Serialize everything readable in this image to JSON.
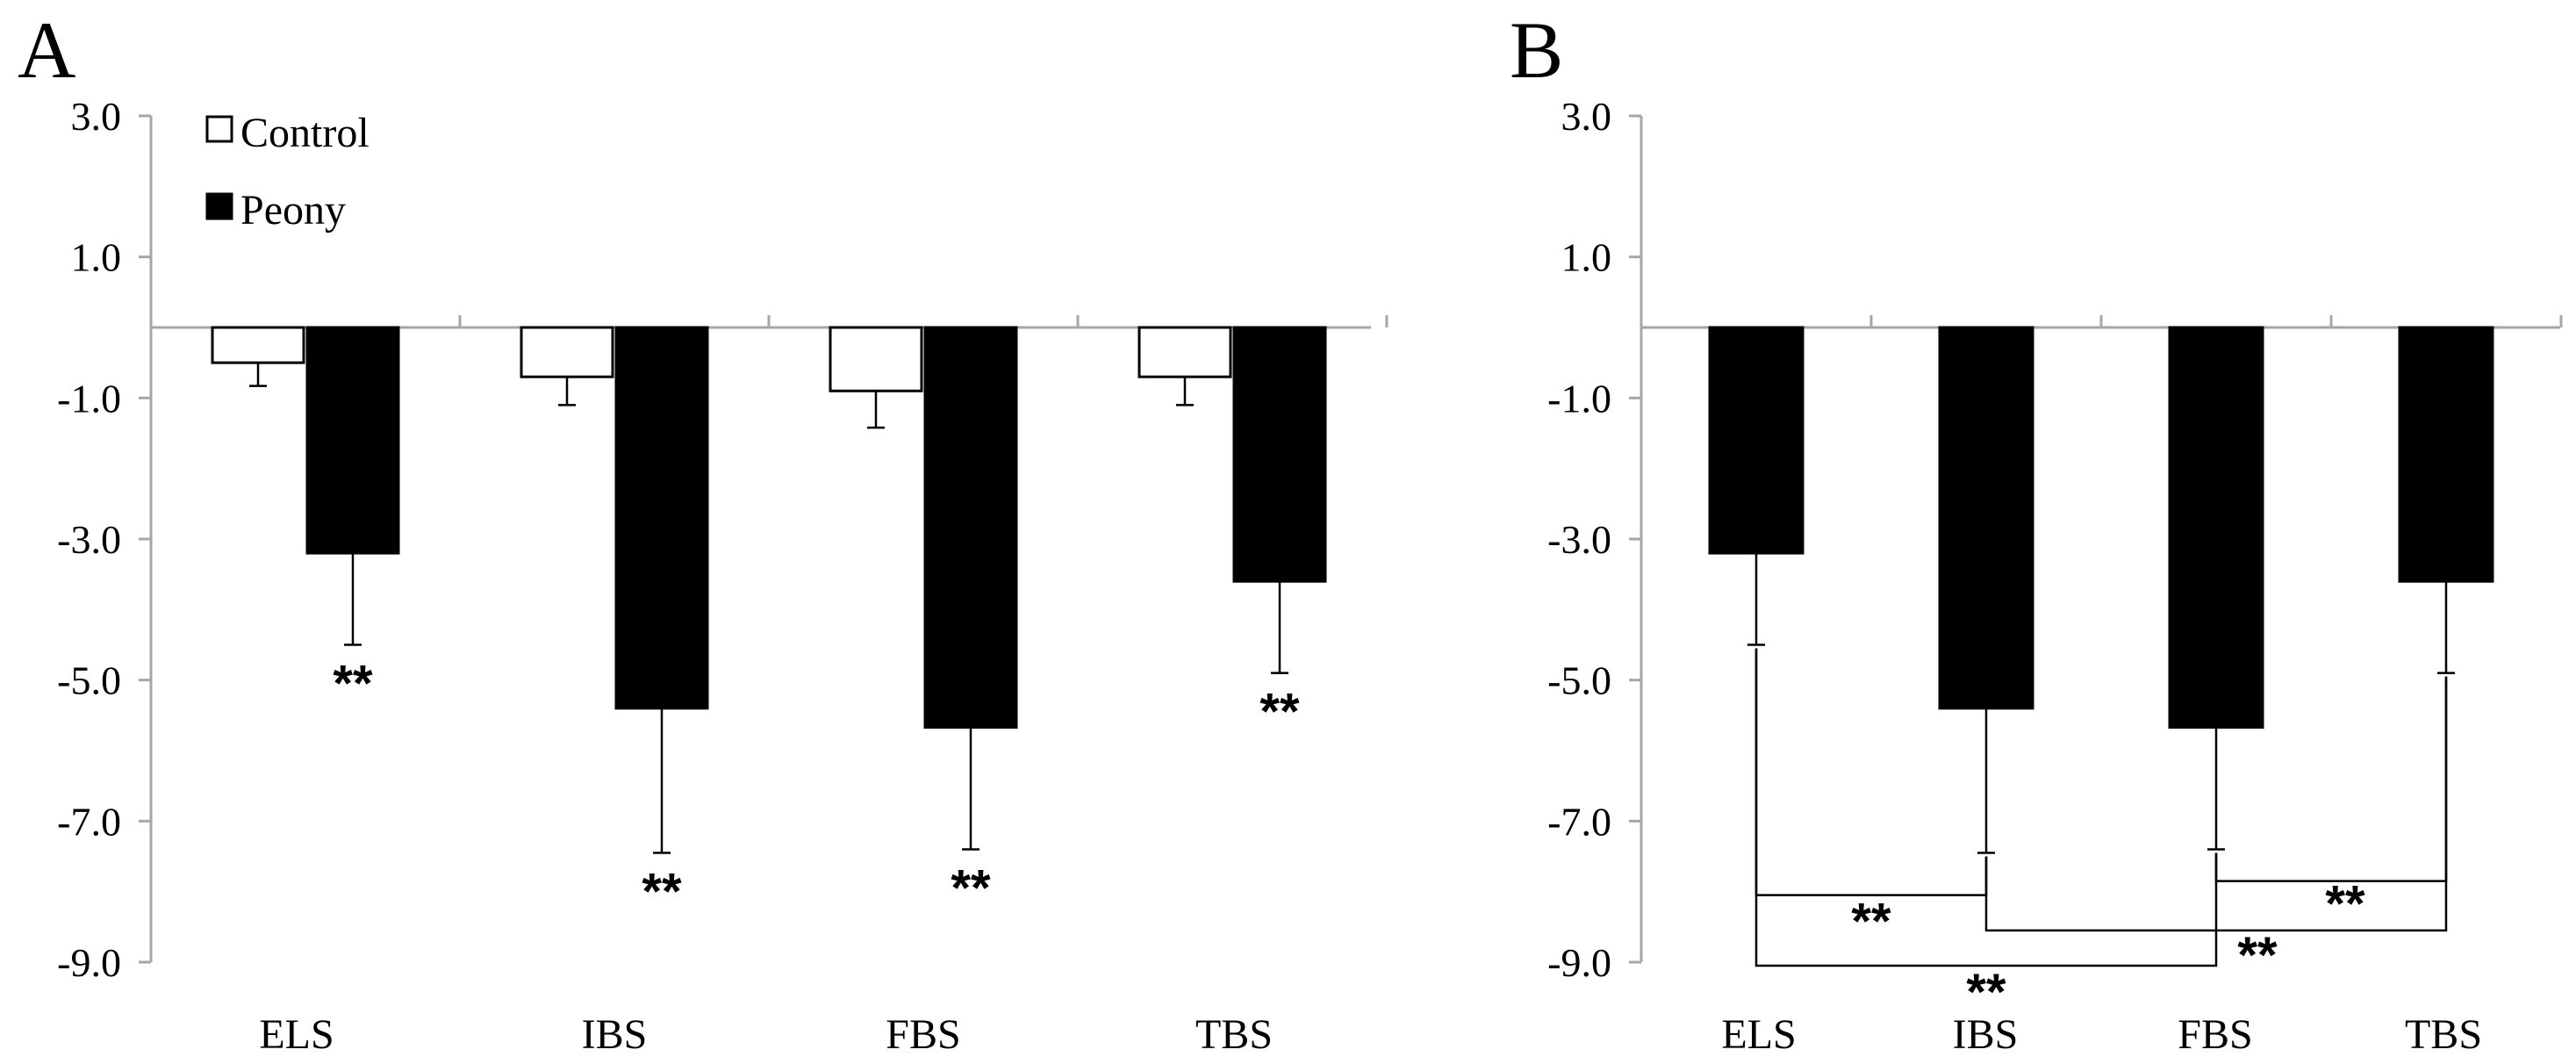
{
  "chart_data": [
    {
      "panel": "A",
      "type": "bar",
      "categories": [
        "ELS",
        "IBS",
        "FBS",
        "TBS"
      ],
      "y_ticks": [
        "3.0",
        "1.0",
        "-1.0",
        "-3.0",
        "-5.0",
        "-7.0",
        "-9.0"
      ],
      "ylim": [
        -9.0,
        3.0
      ],
      "legend": {
        "placement": "top-left",
        "entries": [
          "Control",
          "Peony"
        ]
      },
      "series": [
        {
          "name": "Control",
          "color": "#ffffff",
          "values": [
            -0.5,
            -0.7,
            -0.9,
            -0.7
          ],
          "errors": [
            0.33,
            0.4,
            0.52,
            0.4
          ]
        },
        {
          "name": "Peony",
          "color": "#000000",
          "values": [
            -3.2,
            -5.4,
            -5.67,
            -3.6
          ],
          "errors": [
            1.3,
            2.05,
            1.73,
            1.3
          ]
        }
      ],
      "annotations": [
        {
          "text": "**",
          "category": "ELS"
        },
        {
          "text": "**",
          "category": "IBS"
        },
        {
          "text": "**",
          "category": "FBS"
        },
        {
          "text": "**",
          "category": "TBS"
        }
      ]
    },
    {
      "panel": "B",
      "type": "bar",
      "categories": [
        "ELS",
        "IBS",
        "FBS",
        "TBS"
      ],
      "y_ticks": [
        "3.0",
        "1.0",
        "-1.0",
        "-3.0",
        "-5.0",
        "-7.0",
        "-9.0"
      ],
      "ylim": [
        -9.0,
        3.0
      ],
      "series": [
        {
          "name": "Peony",
          "color": "#000000",
          "values": [
            -3.2,
            -5.4,
            -5.67,
            -3.6
          ],
          "errors": [
            1.3,
            2.05,
            1.73,
            1.3
          ]
        }
      ],
      "comparisons": [
        {
          "from": "ELS",
          "to": "IBS",
          "level": -8.05,
          "text": "**"
        },
        {
          "from": "FBS",
          "to": "TBS",
          "level": -7.85,
          "text": "**"
        },
        {
          "from": "IBS",
          "to": "TBS",
          "level": -8.55,
          "text": "**"
        },
        {
          "from": "ELS",
          "to": "FBS",
          "level": -9.05,
          "text": "**"
        }
      ]
    }
  ]
}
